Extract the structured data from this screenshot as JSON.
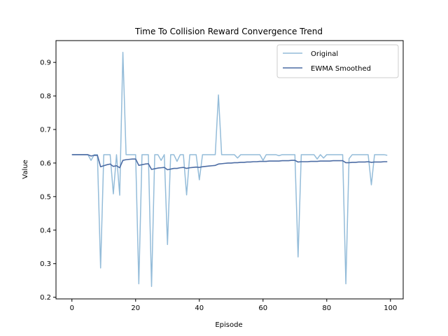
{
  "chart_data": {
    "type": "line",
    "title": "Time To Collision Reward Convergence Trend",
    "xlabel": "Episode",
    "ylabel": "Value",
    "xlim": [
      -5,
      104
    ],
    "ylim": [
      0.195,
      0.965
    ],
    "xticks": [
      0,
      20,
      40,
      60,
      80,
      100
    ],
    "yticks": [
      0.2,
      0.3,
      0.4,
      0.5,
      0.6,
      0.7,
      0.8,
      0.9
    ],
    "grid": false,
    "legend_position": "top-right",
    "series": [
      {
        "name": "Original",
        "color": "#94bcd9",
        "x": [
          0,
          1,
          2,
          3,
          4,
          5,
          6,
          7,
          8,
          9,
          10,
          11,
          12,
          13,
          14,
          15,
          16,
          17,
          18,
          19,
          20,
          21,
          22,
          23,
          24,
          25,
          26,
          27,
          28,
          29,
          30,
          31,
          32,
          33,
          34,
          35,
          36,
          37,
          38,
          39,
          40,
          41,
          42,
          43,
          44,
          45,
          46,
          47,
          48,
          49,
          50,
          51,
          52,
          53,
          54,
          55,
          56,
          57,
          58,
          59,
          60,
          61,
          62,
          63,
          64,
          65,
          66,
          67,
          68,
          69,
          70,
          71,
          72,
          73,
          74,
          75,
          76,
          77,
          78,
          79,
          80,
          81,
          82,
          83,
          84,
          85,
          86,
          87,
          88,
          89,
          90,
          91,
          92,
          93,
          94,
          95,
          96,
          97,
          98,
          99
        ],
        "values": [
          0.625,
          0.625,
          0.625,
          0.625,
          0.625,
          0.625,
          0.608,
          0.625,
          0.625,
          0.287,
          0.625,
          0.625,
          0.625,
          0.508,
          0.625,
          0.504,
          0.93,
          0.625,
          0.625,
          0.625,
          0.625,
          0.24,
          0.625,
          0.625,
          0.625,
          0.232,
          0.625,
          0.625,
          0.608,
          0.625,
          0.357,
          0.625,
          0.625,
          0.605,
          0.625,
          0.625,
          0.505,
          0.625,
          0.625,
          0.625,
          0.55,
          0.625,
          0.625,
          0.625,
          0.625,
          0.625,
          0.803,
          0.625,
          0.625,
          0.625,
          0.625,
          0.625,
          0.615,
          0.625,
          0.625,
          0.625,
          0.625,
          0.625,
          0.625,
          0.625,
          0.608,
          0.625,
          0.625,
          0.625,
          0.625,
          0.622,
          0.625,
          0.625,
          0.625,
          0.625,
          0.625,
          0.32,
          0.625,
          0.625,
          0.625,
          0.625,
          0.625,
          0.612,
          0.625,
          0.615,
          0.625,
          0.625,
          0.625,
          0.625,
          0.625,
          0.625,
          0.24,
          0.613,
          0.625,
          0.625,
          0.625,
          0.625,
          0.625,
          0.625,
          0.535,
          0.625,
          0.625,
          0.625,
          0.625,
          0.623
        ]
      },
      {
        "name": "EWMA Smoothed",
        "color": "#4c6ca4",
        "x": [
          0,
          1,
          2,
          3,
          4,
          5,
          6,
          7,
          8,
          9,
          10,
          11,
          12,
          13,
          14,
          15,
          16,
          17,
          18,
          19,
          20,
          21,
          22,
          23,
          24,
          25,
          26,
          27,
          28,
          29,
          30,
          31,
          32,
          33,
          34,
          35,
          36,
          37,
          38,
          39,
          40,
          41,
          42,
          43,
          44,
          45,
          46,
          47,
          48,
          49,
          50,
          51,
          52,
          53,
          54,
          55,
          56,
          57,
          58,
          59,
          60,
          61,
          62,
          63,
          64,
          65,
          66,
          67,
          68,
          69,
          70,
          71,
          72,
          73,
          74,
          75,
          76,
          77,
          78,
          79,
          80,
          81,
          82,
          83,
          84,
          85,
          86,
          87,
          88,
          89,
          90,
          91,
          92,
          93,
          94,
          95,
          96,
          97,
          98,
          99
        ],
        "values": [
          0.625,
          0.625,
          0.625,
          0.625,
          0.625,
          0.625,
          0.621,
          0.623,
          0.623,
          0.589,
          0.592,
          0.595,
          0.597,
          0.59,
          0.592,
          0.586,
          0.608,
          0.61,
          0.611,
          0.612,
          0.612,
          0.593,
          0.595,
          0.597,
          0.598,
          0.581,
          0.583,
          0.585,
          0.586,
          0.587,
          0.58,
          0.582,
          0.584,
          0.584,
          0.586,
          0.587,
          0.584,
          0.586,
          0.587,
          0.588,
          0.587,
          0.589,
          0.59,
          0.591,
          0.592,
          0.593,
          0.597,
          0.598,
          0.599,
          0.6,
          0.6,
          0.601,
          0.601,
          0.602,
          0.602,
          0.603,
          0.603,
          0.604,
          0.604,
          0.605,
          0.605,
          0.605,
          0.606,
          0.606,
          0.606,
          0.606,
          0.607,
          0.607,
          0.607,
          0.608,
          0.608,
          0.603,
          0.604,
          0.604,
          0.604,
          0.605,
          0.605,
          0.605,
          0.606,
          0.606,
          0.606,
          0.606,
          0.607,
          0.607,
          0.607,
          0.607,
          0.601,
          0.601,
          0.602,
          0.602,
          0.603,
          0.603,
          0.603,
          0.604,
          0.602,
          0.603,
          0.603,
          0.603,
          0.604,
          0.604
        ]
      }
    ]
  }
}
